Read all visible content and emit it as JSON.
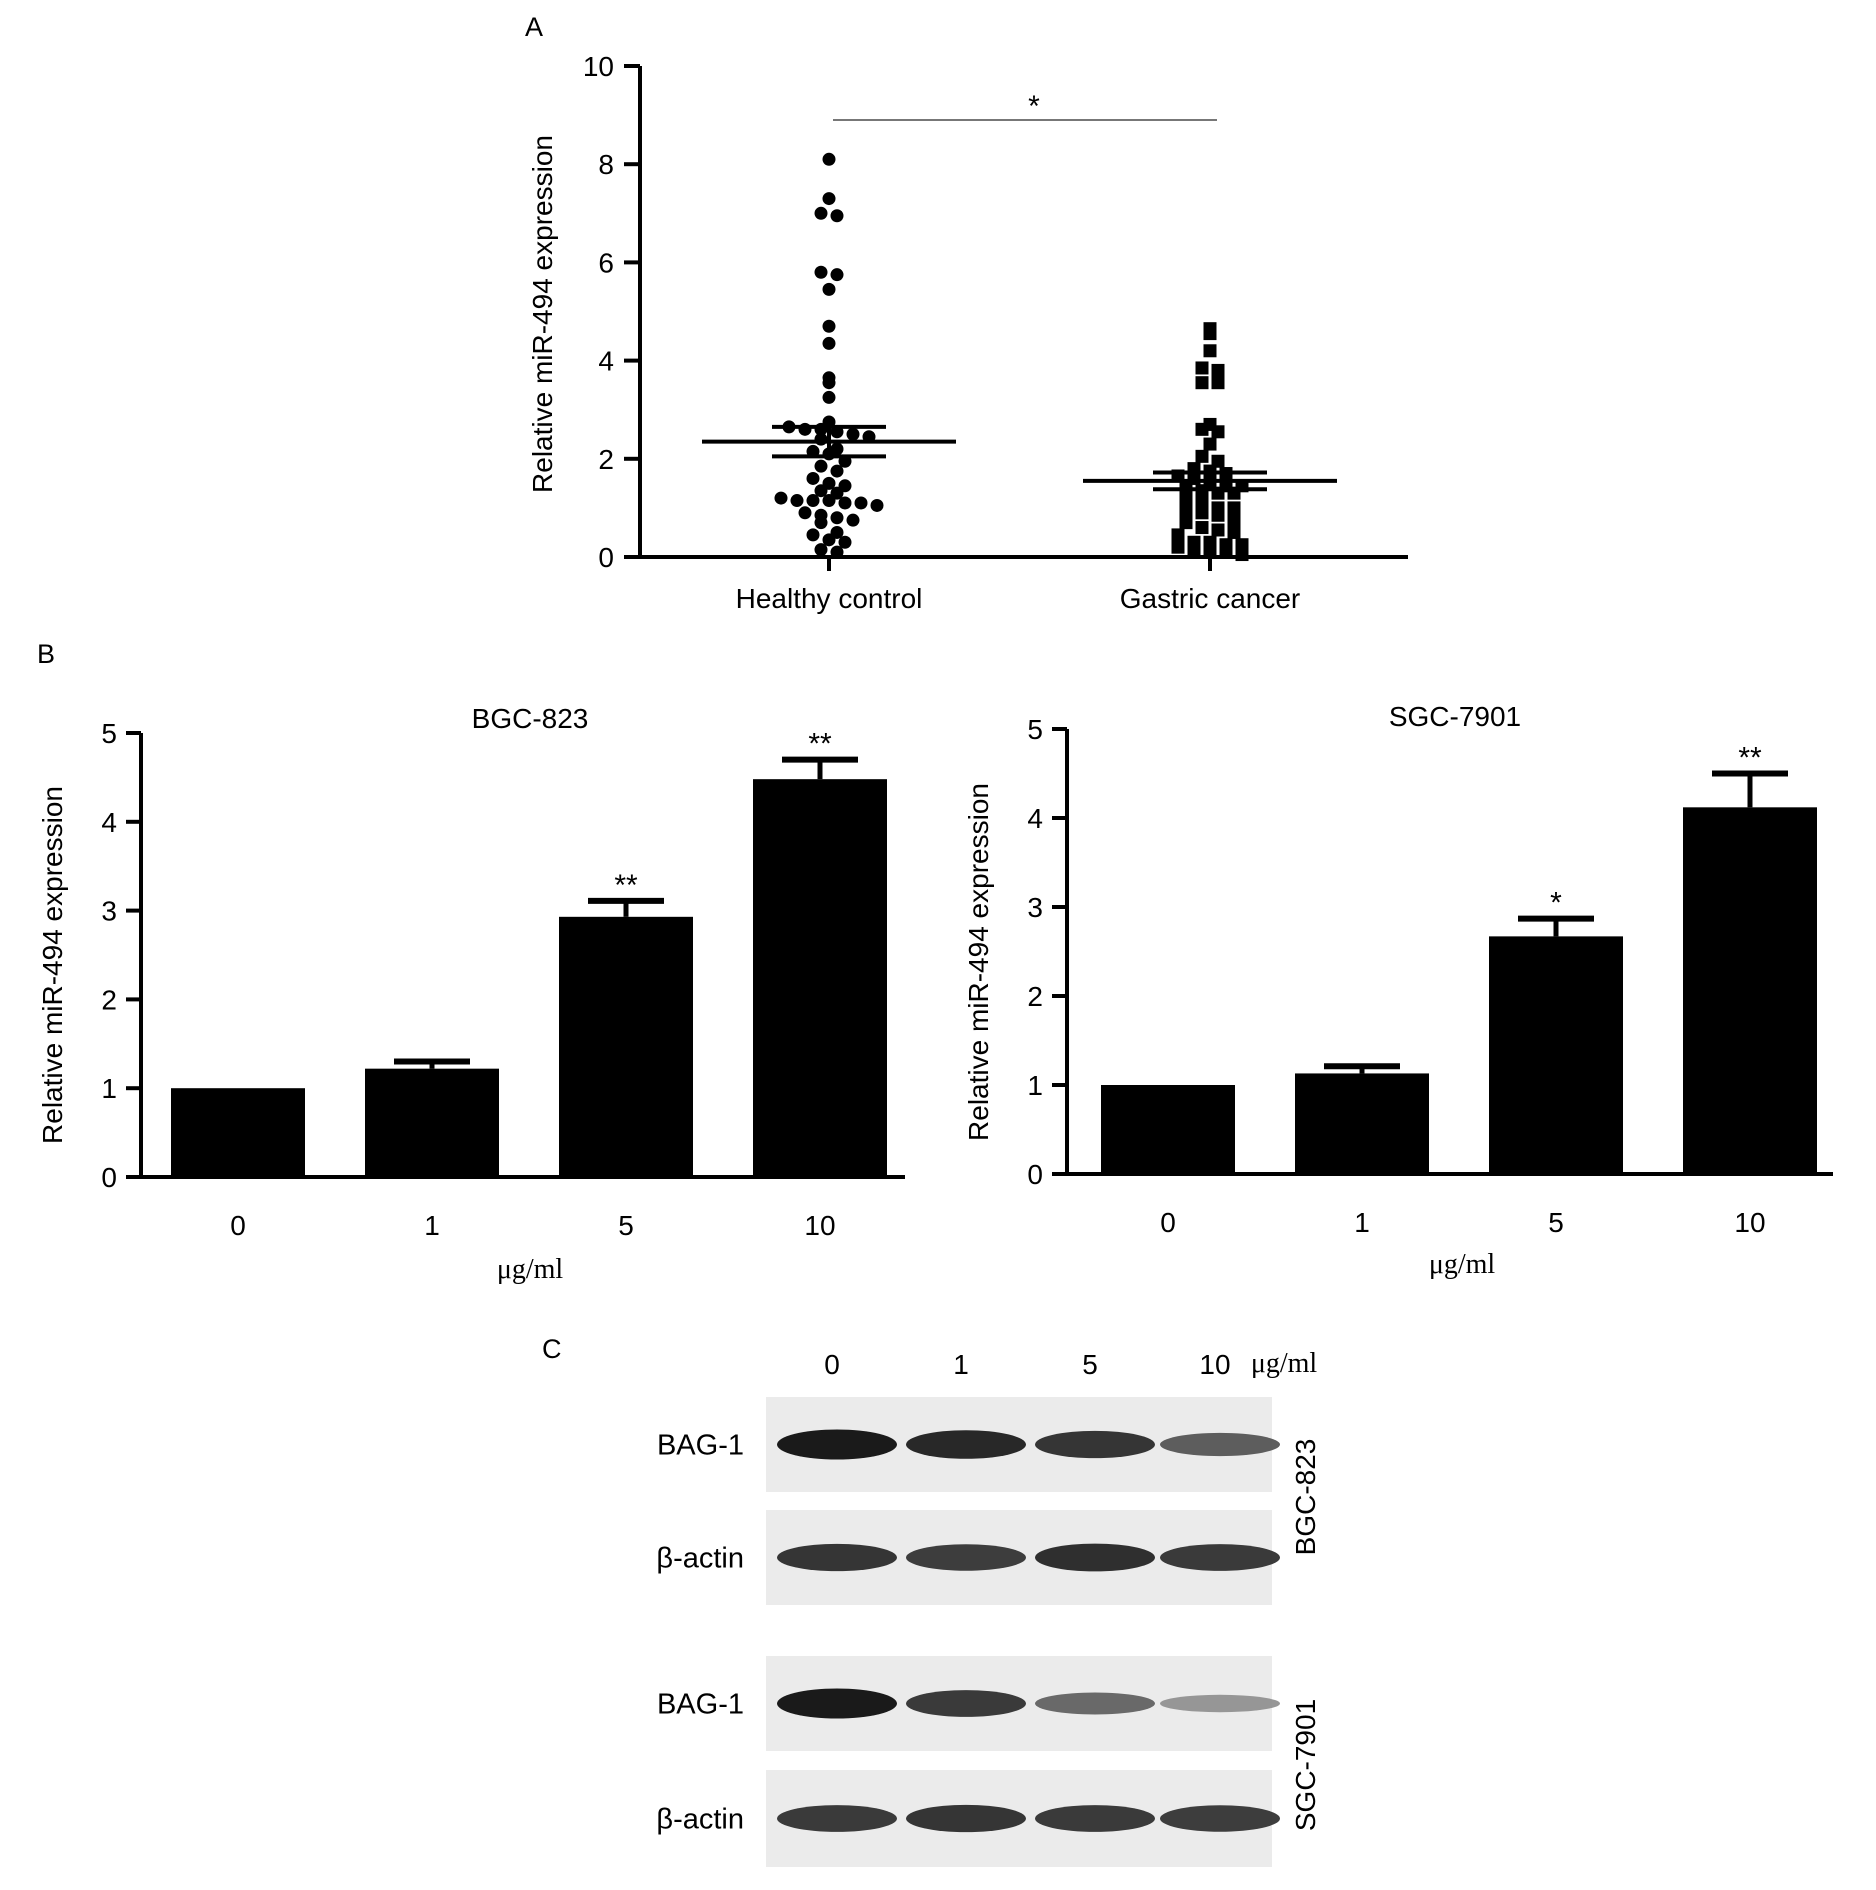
{
  "figure": {
    "panel_labels": [
      "A",
      "B",
      "C"
    ]
  },
  "chart_data": [
    {
      "id": "A",
      "type": "scatter",
      "ylabel": "Relative miR-494 expression",
      "xlabel": "",
      "ylim": [
        0,
        10
      ],
      "yticks": [
        0,
        2,
        4,
        6,
        8,
        10
      ],
      "categories": [
        "Healthy control",
        "Gastric cancer"
      ],
      "series": [
        {
          "name": "Healthy control",
          "marker": "circle",
          "mean": 2.35,
          "sem": 0.3,
          "values": [
            8.1,
            7.3,
            7.0,
            6.95,
            5.8,
            5.75,
            5.45,
            4.7,
            4.35,
            3.65,
            3.55,
            3.25,
            2.75,
            2.65,
            2.6,
            2.6,
            2.55,
            2.5,
            2.45,
            2.4,
            2.2,
            2.15,
            2.1,
            1.95,
            1.85,
            1.75,
            1.6,
            1.5,
            1.45,
            1.35,
            1.3,
            1.2,
            1.15,
            1.15,
            1.15,
            1.1,
            1.1,
            1.05,
            0.9,
            0.85,
            0.8,
            0.75,
            0.7,
            0.5,
            0.45,
            0.35,
            0.3,
            0.15,
            0.1
          ]
        },
        {
          "name": "Gastric cancer",
          "marker": "square",
          "mean": 1.55,
          "sem": 0.17,
          "values": [
            4.65,
            4.55,
            4.2,
            3.85,
            3.8,
            3.55,
            3.55,
            2.7,
            2.6,
            2.55,
            2.3,
            2.05,
            1.95,
            1.8,
            1.75,
            1.7,
            1.65,
            1.6,
            1.5,
            1.45,
            1.45,
            1.4,
            1.35,
            1.3,
            1.3,
            1.2,
            1.15,
            1.0,
            1.0,
            0.95,
            0.9,
            0.85,
            0.75,
            0.7,
            0.6,
            0.55,
            0.5,
            0.45,
            0.3,
            0.3,
            0.25,
            0.25,
            0.2,
            0.15,
            0.15,
            0.1,
            0.05
          ]
        }
      ],
      "annotations": [
        {
          "text": "*",
          "between": [
            "Healthy control",
            "Gastric cancer"
          ]
        }
      ]
    },
    {
      "id": "B-left",
      "type": "bar",
      "title": "BGC-823",
      "xlabel": "μg/ml",
      "ylabel": "Relative miR-494 expression",
      "ylim": [
        0,
        5
      ],
      "yticks": [
        0,
        1,
        2,
        3,
        4,
        5
      ],
      "categories": [
        "0",
        "1",
        "5",
        "10"
      ],
      "values": [
        1.0,
        1.22,
        2.93,
        4.48
      ],
      "errors": [
        0.0,
        0.08,
        0.18,
        0.22
      ],
      "significance": [
        "",
        "",
        "**",
        "**"
      ]
    },
    {
      "id": "B-right",
      "type": "bar",
      "title": "SGC-7901",
      "xlabel": "μg/ml",
      "ylabel": "Relative miR-494 expression",
      "ylim": [
        0,
        5
      ],
      "yticks": [
        0,
        1,
        2,
        3,
        4,
        5
      ],
      "categories": [
        "0",
        "1",
        "5",
        "10"
      ],
      "values": [
        1.0,
        1.13,
        2.67,
        4.12
      ],
      "errors": [
        0.0,
        0.08,
        0.2,
        0.38
      ],
      "significance": [
        "",
        "",
        "*",
        "**"
      ]
    },
    {
      "id": "C",
      "type": "table",
      "lane_labels": [
        "0",
        "1",
        "5",
        "10"
      ],
      "lane_unit": "μg/ml",
      "blocks": [
        {
          "cell_line": "BGC-823",
          "rows": [
            {
              "protein": "BAG-1",
              "intensity": [
                1.0,
                0.92,
                0.85,
                0.62
              ]
            },
            {
              "protein": "β-actin",
              "intensity": [
                0.85,
                0.8,
                0.88,
                0.82
              ]
            }
          ]
        },
        {
          "cell_line": "SGC-7901",
          "rows": [
            {
              "protein": "BAG-1",
              "intensity": [
                1.0,
                0.82,
                0.55,
                0.3
              ]
            },
            {
              "protein": "β-actin",
              "intensity": [
                0.82,
                0.85,
                0.82,
                0.8
              ]
            }
          ]
        }
      ]
    }
  ]
}
